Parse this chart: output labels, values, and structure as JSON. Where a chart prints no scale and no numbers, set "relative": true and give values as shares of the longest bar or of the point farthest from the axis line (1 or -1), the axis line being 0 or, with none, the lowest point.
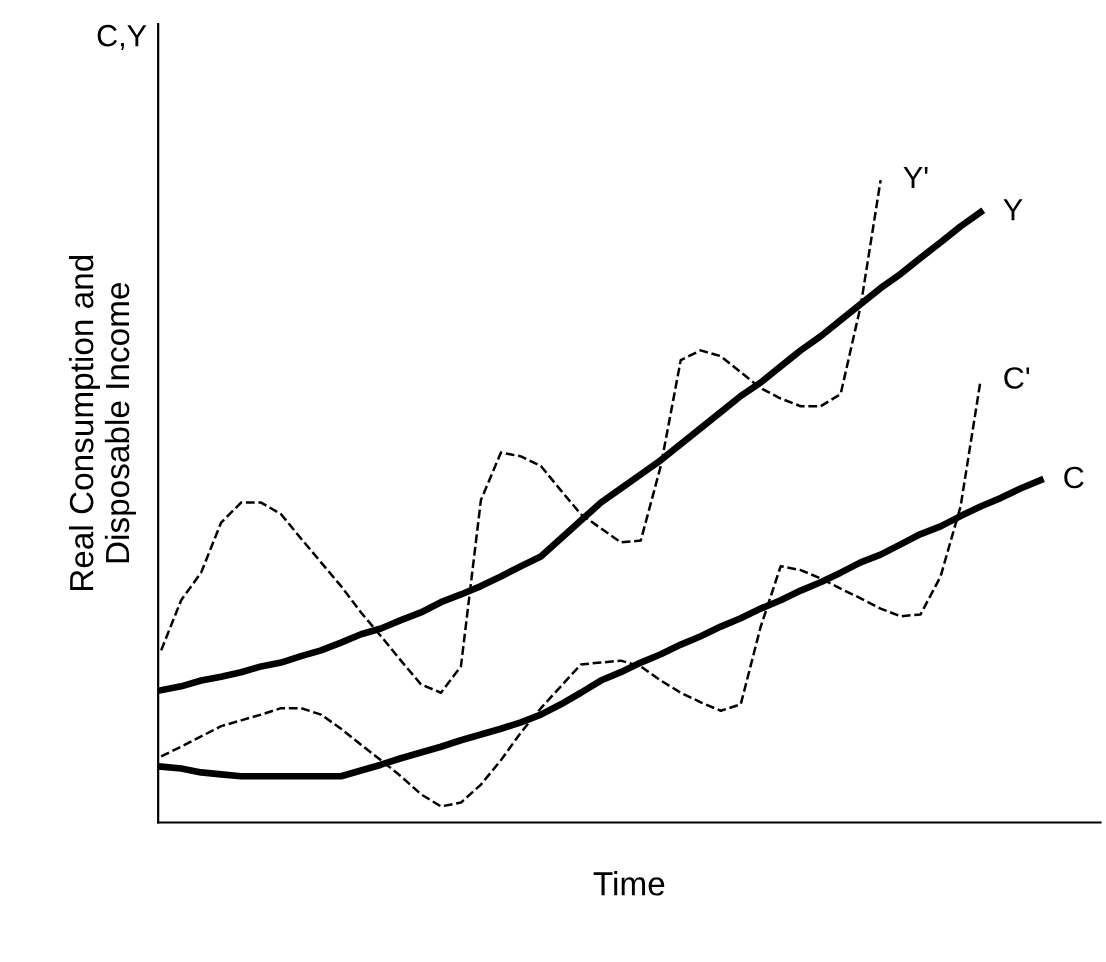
{
  "chart_data": {
    "type": "line",
    "relative": true,
    "xlabel": "Time",
    "ylabel": "Real Consumption and\nDisposable Income",
    "annotations": [
      "C,Y"
    ],
    "categories": [
      null,
      null,
      null,
      null,
      null,
      null,
      null,
      null,
      null,
      null,
      null,
      null,
      null,
      null,
      null,
      null,
      null,
      null,
      null,
      null,
      null,
      null,
      null,
      null,
      null,
      null,
      null,
      null,
      null,
      null,
      null,
      null,
      null,
      null,
      null,
      null,
      null,
      null,
      null,
      null,
      null,
      null,
      null,
      null,
      null,
      null
    ],
    "series": [
      {
        "name": "Y'",
        "color": "#000000",
        "line_style": "dashed",
        "values": [
          0.268,
          0.346,
          0.389,
          0.467,
          0.498,
          0.498,
          0.48,
          0.442,
          0.405,
          0.368,
          0.327,
          0.29,
          0.252,
          0.215,
          0.202,
          0.243,
          0.502,
          0.576,
          0.57,
          0.555,
          0.517,
          0.48,
          0.458,
          0.436,
          0.439,
          0.555,
          0.72,
          0.735,
          0.726,
          0.701,
          0.676,
          0.66,
          0.648,
          0.648,
          0.667,
          0.804,
          1.0,
          null,
          null,
          null,
          null,
          null,
          null,
          null,
          null,
          null
        ]
      },
      {
        "name": "Y",
        "color": "#000000",
        "line_style": "solid",
        "values": [
          0.206,
          0.212,
          0.221,
          0.227,
          0.234,
          0.243,
          0.249,
          0.259,
          0.268,
          0.28,
          0.293,
          0.302,
          0.315,
          0.327,
          0.343,
          0.355,
          0.368,
          0.383,
          0.399,
          0.414,
          0.442,
          0.47,
          0.498,
          0.52,
          0.542,
          0.564,
          0.589,
          0.614,
          0.639,
          0.664,
          0.685,
          0.71,
          0.735,
          0.757,
          0.782,
          0.807,
          0.832,
          0.854,
          0.879,
          0.903,
          0.928,
          0.95,
          null,
          null,
          null,
          null
        ]
      },
      {
        "name": "C'",
        "color": "#000000",
        "line_style": "dashed",
        "values": [
          0.103,
          0.118,
          0.134,
          0.15,
          0.159,
          0.168,
          0.178,
          0.178,
          0.168,
          0.146,
          0.121,
          0.097,
          0.072,
          0.044,
          0.025,
          0.031,
          0.059,
          0.097,
          0.14,
          0.178,
          0.212,
          0.246,
          0.249,
          0.252,
          0.243,
          0.221,
          0.202,
          0.187,
          0.174,
          0.184,
          0.305,
          0.399,
          0.393,
          0.38,
          0.364,
          0.349,
          0.333,
          0.321,
          0.324,
          0.383,
          0.492,
          0.688,
          null,
          null,
          null,
          null
        ]
      },
      {
        "name": "C",
        "color": "#000000",
        "line_style": "solid",
        "values": [
          0.087,
          0.084,
          0.078,
          0.075,
          0.072,
          0.072,
          0.072,
          0.072,
          0.072,
          0.072,
          0.081,
          0.09,
          0.1,
          0.109,
          0.118,
          0.128,
          0.137,
          0.146,
          0.156,
          0.168,
          0.184,
          0.202,
          0.221,
          0.234,
          0.249,
          0.262,
          0.277,
          0.29,
          0.305,
          0.318,
          0.333,
          0.346,
          0.361,
          0.374,
          0.389,
          0.405,
          0.417,
          0.433,
          0.449,
          0.461,
          0.477,
          0.492,
          0.505,
          0.52,
          0.533,
          null
        ]
      }
    ]
  }
}
